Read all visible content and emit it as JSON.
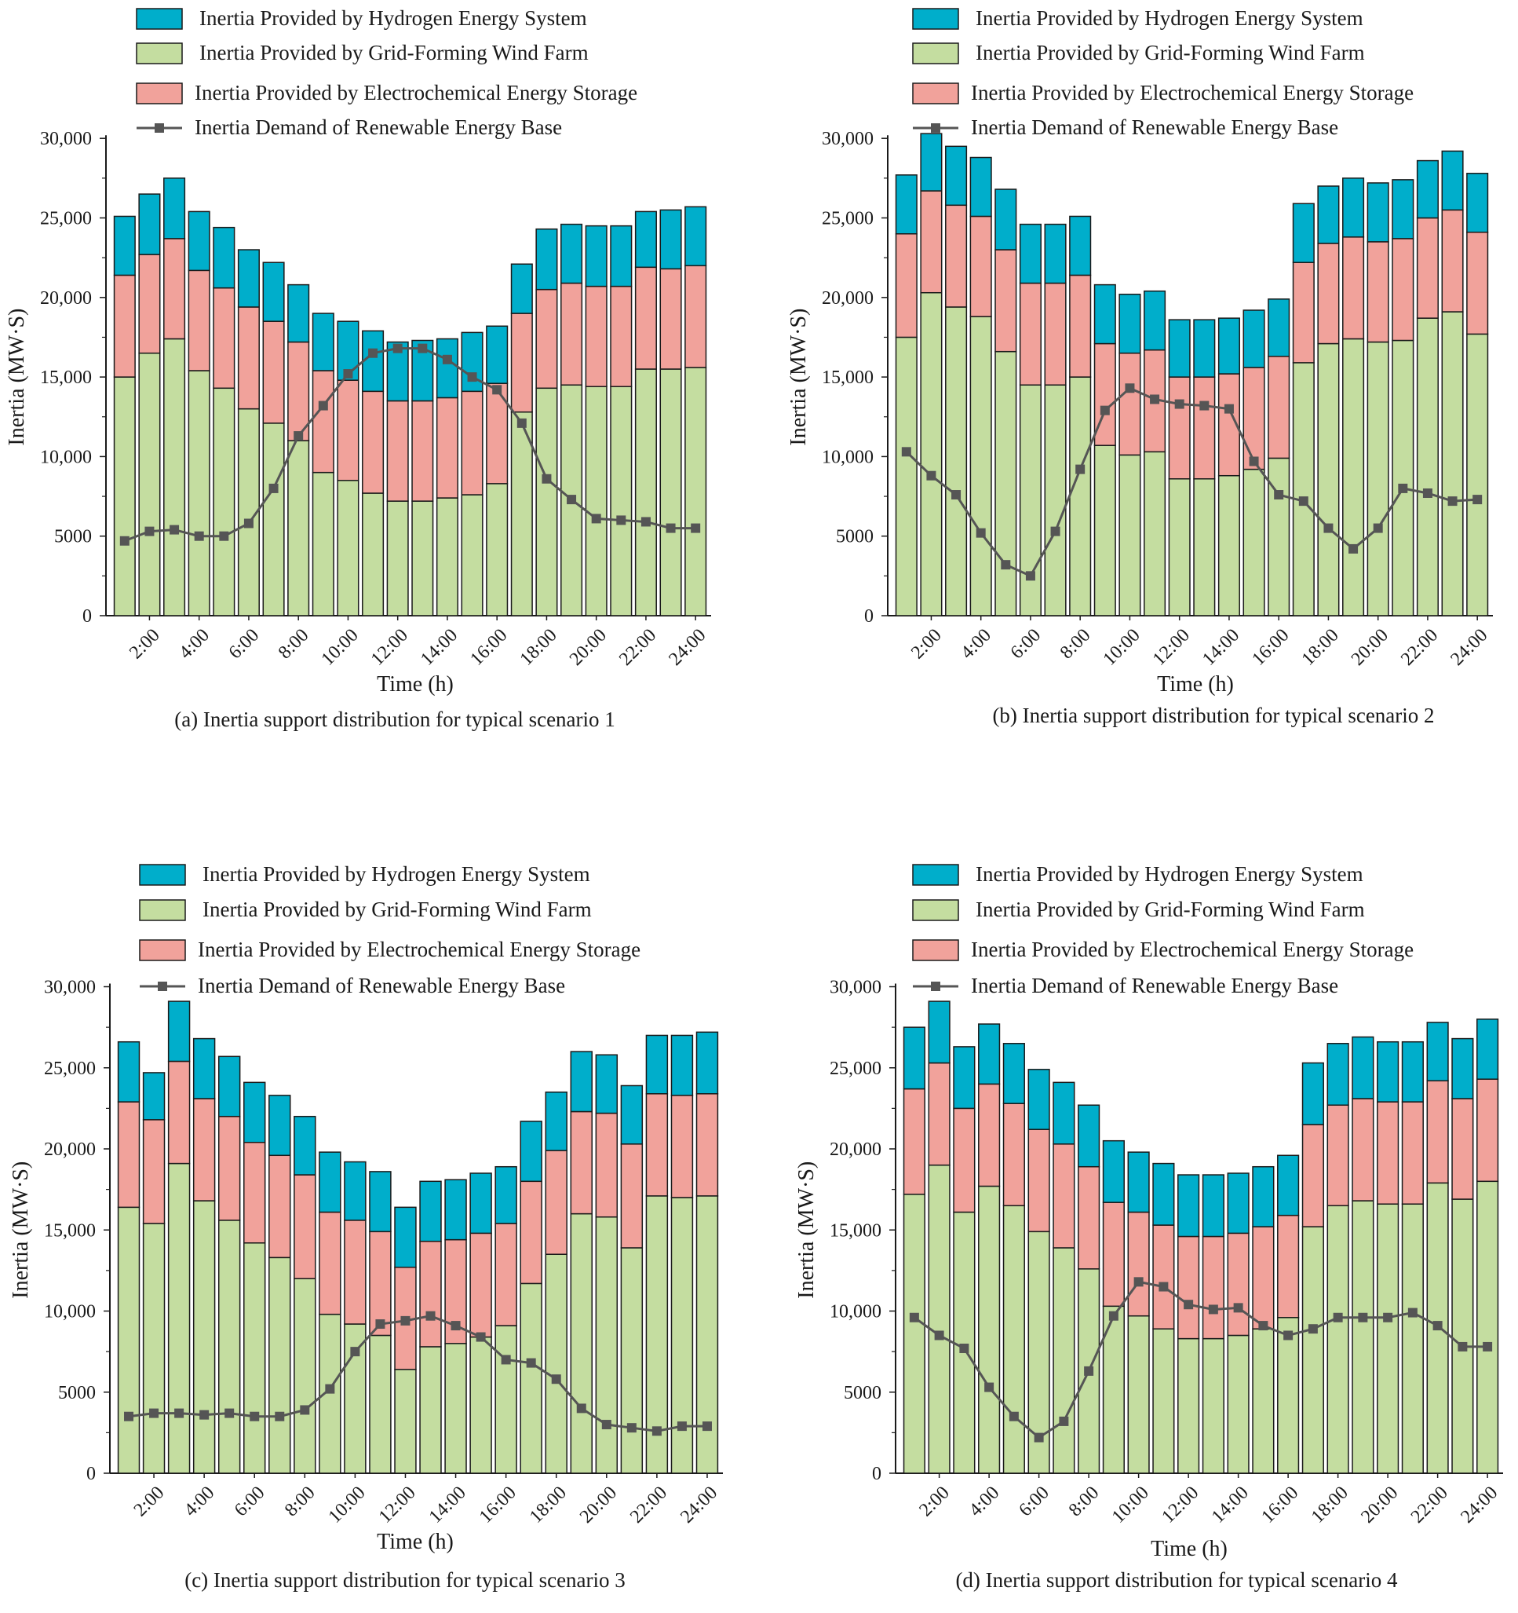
{
  "colors": {
    "hydrogen": "#00AECB",
    "wind": "#C4DDA0",
    "storage": "#F1A29B",
    "demand": "#555555",
    "outline": "#1a1a1a"
  },
  "chart_data": [
    {
      "type": "bar",
      "stacked": true,
      "title": "(a) Inertia support distribution for typical scenario 1",
      "xlabel": "Time  (h)",
      "ylabel": "Inertia (MW·S)",
      "ylim": [
        0,
        30000
      ],
      "yticks": [
        0,
        5000,
        10000,
        15000,
        20000,
        25000,
        30000
      ],
      "ytick_labels": [
        "0",
        "5000",
        "10,000",
        "15,000",
        "20,000",
        "25,000",
        "30,000"
      ],
      "xtick_labels": [
        "2:00",
        "4:00",
        "6:00",
        "8:00",
        "10:00",
        "12:00",
        "14:00",
        "16:00",
        "18:00",
        "20:00",
        "22:00",
        "24:00"
      ],
      "hours": [
        1,
        2,
        3,
        4,
        5,
        6,
        7,
        8,
        9,
        10,
        11,
        12,
        13,
        14,
        15,
        16,
        17,
        18,
        19,
        20,
        21,
        22,
        23,
        24
      ],
      "legend": [
        "Inertia Provided by Hydrogen Energy System",
        "Inertia Provided by Grid-Forming Wind Farm",
        "Inertia Provided by Electrochemical Energy Storage",
        "Inertia Demand of Renewable Energy Base"
      ],
      "legend_position": "top",
      "series": [
        {
          "name": "Inertia Provided by Grid-Forming Wind Farm",
          "values": [
            15000,
            16500,
            17400,
            15400,
            14300,
            13000,
            12100,
            11000,
            9000,
            8500,
            7700,
            7200,
            7200,
            7400,
            7600,
            8300,
            12800,
            14300,
            14500,
            14400,
            14400,
            15500,
            15500,
            15600
          ]
        },
        {
          "name": "Inertia Provided by Electrochemical Energy Storage",
          "values": [
            6400,
            6200,
            6300,
            6300,
            6300,
            6400,
            6400,
            6200,
            6400,
            6300,
            6400,
            6300,
            6300,
            6300,
            6500,
            6300,
            6200,
            6200,
            6400,
            6300,
            6300,
            6400,
            6300,
            6400
          ]
        },
        {
          "name": "Inertia Provided by Hydrogen Energy System",
          "values": [
            3700,
            3800,
            3800,
            3700,
            3800,
            3600,
            3700,
            3600,
            3600,
            3700,
            3800,
            3700,
            3800,
            3700,
            3700,
            3600,
            3100,
            3800,
            3700,
            3800,
            3800,
            3500,
            3700,
            3700
          ]
        }
      ],
      "line": {
        "name": "Inertia Demand of Renewable Energy Base",
        "values": [
          4700,
          5300,
          5400,
          5000,
          5000,
          5800,
          8000,
          11300,
          13200,
          15200,
          16500,
          16800,
          16800,
          16100,
          15000,
          14200,
          12100,
          8600,
          7300,
          6100,
          6000,
          5900,
          5500,
          5500
        ]
      }
    },
    {
      "type": "bar",
      "stacked": true,
      "title": "(b) Inertia support distribution for typical scenario 2",
      "xlabel": "Time  (h)",
      "ylabel": "Inertia (MW·S)",
      "ylim": [
        0,
        30000
      ],
      "yticks": [
        0,
        5000,
        10000,
        15000,
        20000,
        25000,
        30000
      ],
      "ytick_labels": [
        "0",
        "5000",
        "10,000",
        "15,000",
        "20,000",
        "25,000",
        "30,000"
      ],
      "xtick_labels": [
        "2:00",
        "4:00",
        "6:00",
        "8:00",
        "10:00",
        "12:00",
        "14:00",
        "16:00",
        "18:00",
        "20:00",
        "22:00",
        "24:00"
      ],
      "hours": [
        1,
        2,
        3,
        4,
        5,
        6,
        7,
        8,
        9,
        10,
        11,
        12,
        13,
        14,
        15,
        16,
        17,
        18,
        19,
        20,
        21,
        22,
        23,
        24
      ],
      "legend": [
        "Inertia Provided by Hydrogen Energy System",
        "Inertia Provided by Grid-Forming Wind Farm",
        "Inertia Provided by Electrochemical Energy Storage",
        "Inertia Demand of Renewable Energy Base"
      ],
      "legend_position": "top",
      "series": [
        {
          "name": "Inertia Provided by Grid-Forming Wind Farm",
          "values": [
            17500,
            20300,
            19400,
            18800,
            16600,
            14500,
            14500,
            15000,
            10700,
            10100,
            10300,
            8600,
            8600,
            8800,
            9200,
            9900,
            15900,
            17100,
            17400,
            17200,
            17300,
            18700,
            19100,
            17700
          ]
        },
        {
          "name": "Inertia Provided by Electrochemical Energy Storage",
          "values": [
            6500,
            6400,
            6400,
            6300,
            6400,
            6400,
            6400,
            6400,
            6400,
            6400,
            6400,
            6400,
            6400,
            6400,
            6400,
            6400,
            6300,
            6300,
            6400,
            6300,
            6400,
            6300,
            6400,
            6400
          ]
        },
        {
          "name": "Inertia Provided by Hydrogen Energy System",
          "values": [
            3700,
            3600,
            3700,
            3700,
            3800,
            3700,
            3700,
            3700,
            3700,
            3700,
            3700,
            3600,
            3600,
            3500,
            3600,
            3600,
            3700,
            3600,
            3700,
            3700,
            3700,
            3600,
            3700,
            3700
          ]
        }
      ],
      "line": {
        "name": "Inertia Demand of Renewable Energy Base",
        "values": [
          10300,
          8800,
          7600,
          5200,
          3200,
          2500,
          5300,
          9200,
          12900,
          14300,
          13600,
          13300,
          13200,
          13000,
          9700,
          7600,
          7200,
          5500,
          4200,
          5500,
          8000,
          7700,
          7200,
          7300
        ]
      }
    },
    {
      "type": "bar",
      "stacked": true,
      "title": "(c) Inertia support distribution for typical scenario 3",
      "xlabel": "Time  (h)",
      "ylabel": "Inertia (MW·S)",
      "ylim": [
        0,
        30000
      ],
      "yticks": [
        0,
        5000,
        10000,
        15000,
        20000,
        25000,
        30000
      ],
      "ytick_labels": [
        "0",
        "5000",
        "10,000",
        "15,000",
        "20,000",
        "25,000",
        "30,000"
      ],
      "xtick_labels": [
        "2:00",
        "4:00",
        "6:00",
        "8:00",
        "10:00",
        "12:00",
        "14:00",
        "16:00",
        "18:00",
        "20:00",
        "22:00",
        "24:00"
      ],
      "hours": [
        1,
        2,
        3,
        4,
        5,
        6,
        7,
        8,
        9,
        10,
        11,
        12,
        13,
        14,
        15,
        16,
        17,
        18,
        19,
        20,
        21,
        22,
        23,
        24
      ],
      "legend": [
        "Inertia Provided by Hydrogen Energy System",
        "Inertia Provided by Grid-Forming Wind Farm",
        "Inertia Provided by Electrochemical Energy Storage",
        "Inertia Demand of Renewable Energy Base"
      ],
      "legend_position": "top",
      "series": [
        {
          "name": "Inertia Provided by Grid-Forming Wind Farm",
          "values": [
            16400,
            15400,
            19100,
            16800,
            15600,
            14200,
            13300,
            12000,
            9800,
            9200,
            8500,
            6400,
            7800,
            8000,
            8400,
            9100,
            11700,
            13500,
            16000,
            15800,
            13900,
            17100,
            17000,
            17100
          ]
        },
        {
          "name": "Inertia Provided by Electrochemical Energy Storage",
          "values": [
            6500,
            6400,
            6300,
            6300,
            6400,
            6200,
            6300,
            6400,
            6300,
            6400,
            6400,
            6300,
            6500,
            6400,
            6400,
            6300,
            6300,
            6400,
            6300,
            6400,
            6400,
            6300,
            6300,
            6300
          ]
        },
        {
          "name": "Inertia Provided by Hydrogen Energy System",
          "values": [
            3700,
            2900,
            3700,
            3700,
            3700,
            3700,
            3700,
            3600,
            3700,
            3600,
            3700,
            3700,
            3700,
            3700,
            3700,
            3500,
            3700,
            3600,
            3700,
            3600,
            3600,
            3600,
            3700,
            3800
          ]
        }
      ],
      "line": {
        "name": "Inertia Demand of Renewable Energy Base",
        "values": [
          3500,
          3700,
          3700,
          3600,
          3700,
          3500,
          3500,
          3900,
          5200,
          7500,
          9200,
          9400,
          9700,
          9100,
          8400,
          7000,
          6800,
          5800,
          4000,
          3000,
          2800,
          2600,
          2900,
          2900
        ]
      }
    },
    {
      "type": "bar",
      "stacked": true,
      "title": "(d) Inertia support distribution for typical scenario 4",
      "xlabel": "Time  (h)",
      "ylabel": "Inertia (MW·S)",
      "ylim": [
        0,
        30000
      ],
      "yticks": [
        0,
        5000,
        10000,
        15000,
        20000,
        25000,
        30000
      ],
      "ytick_labels": [
        "0",
        "5000",
        "10,000",
        "15,000",
        "20,000",
        "25,000",
        "30,000"
      ],
      "xtick_labels": [
        "2:00",
        "4:00",
        "6:00",
        "8:00",
        "10:00",
        "12:00",
        "14:00",
        "16:00",
        "18:00",
        "20:00",
        "22:00",
        "24:00"
      ],
      "hours": [
        1,
        2,
        3,
        4,
        5,
        6,
        7,
        8,
        9,
        10,
        11,
        12,
        13,
        14,
        15,
        16,
        17,
        18,
        19,
        20,
        21,
        22,
        23,
        24
      ],
      "legend": [
        "Inertia Provided by Hydrogen Energy System",
        "Inertia Provided by Grid-Forming Wind Farm",
        "Inertia Provided by Electrochemical Energy Storage",
        "Inertia Demand of Renewable Energy Base"
      ],
      "legend_position": "top",
      "series": [
        {
          "name": "Inertia Provided by Grid-Forming Wind Farm",
          "values": [
            17200,
            19000,
            16100,
            17700,
            16500,
            14900,
            13900,
            12600,
            10300,
            9700,
            8900,
            8300,
            8300,
            8500,
            8900,
            9600,
            15200,
            16500,
            16800,
            16600,
            16600,
            17900,
            16900,
            18000
          ]
        },
        {
          "name": "Inertia Provided by Electrochemical Energy Storage",
          "values": [
            6500,
            6300,
            6400,
            6300,
            6300,
            6300,
            6400,
            6300,
            6400,
            6400,
            6400,
            6300,
            6300,
            6300,
            6300,
            6300,
            6300,
            6200,
            6300,
            6300,
            6300,
            6300,
            6200,
            6300
          ]
        },
        {
          "name": "Inertia Provided by Hydrogen Energy System",
          "values": [
            3800,
            3800,
            3800,
            3700,
            3700,
            3700,
            3800,
            3800,
            3800,
            3700,
            3800,
            3800,
            3800,
            3700,
            3700,
            3700,
            3800,
            3800,
            3800,
            3700,
            3700,
            3600,
            3700,
            3700
          ]
        }
      ],
      "line": {
        "name": "Inertia Demand of Renewable Energy Base",
        "values": [
          9600,
          8500,
          7700,
          5300,
          3500,
          2200,
          3200,
          6300,
          9700,
          11800,
          11500,
          10400,
          10100,
          10200,
          9100,
          8500,
          8900,
          9600,
          9600,
          9600,
          9900,
          9100,
          7800,
          7800
        ]
      }
    }
  ]
}
